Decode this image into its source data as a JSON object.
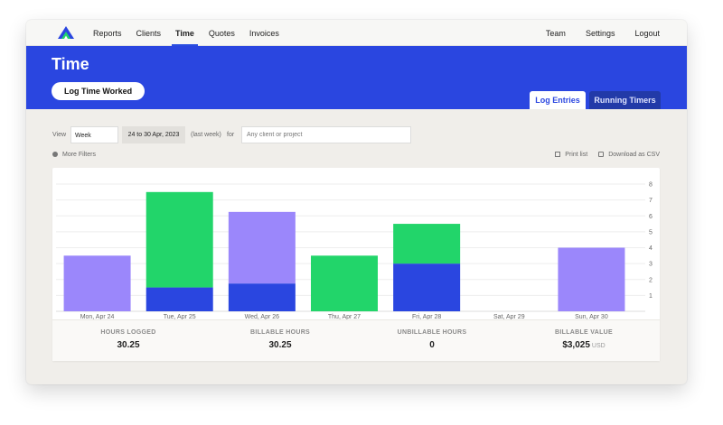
{
  "nav": {
    "logo": "logo-icon",
    "left": [
      "Reports",
      "Clients",
      "Time",
      "Quotes",
      "Invoices"
    ],
    "active": "Time",
    "right": [
      "Team",
      "Settings",
      "Logout"
    ]
  },
  "header": {
    "title": "Time",
    "log_button": "Log Time Worked",
    "tabs": [
      "Log Entries",
      "Running Timers"
    ],
    "active_tab": "Log Entries"
  },
  "filters": {
    "view_label": "View",
    "view_value": "Week",
    "date_range": "24 to 30 Apr, 2023",
    "period_note": "(last week)",
    "for_label": "for",
    "client_placeholder": "Any client or project",
    "more_filters": "More Filters",
    "print_list": "Print list",
    "download_csv": "Download as CSV"
  },
  "chart_data": {
    "type": "bar",
    "stacked": true,
    "categories": [
      "Mon, Apr 24",
      "Tue, Apr 25",
      "Wed, Apr 26",
      "Thu, Apr 27",
      "Fri, Apr 28",
      "Sat, Apr 29",
      "Sun, Apr 30"
    ],
    "ylim": [
      0,
      8
    ],
    "yticks": [
      1,
      2,
      3,
      4,
      5,
      6,
      7,
      8
    ],
    "y_axis_side": "right",
    "grid": true,
    "segments": [
      [
        {
          "value": 3.5,
          "color": "#9b87fb"
        }
      ],
      [
        {
          "value": 1.5,
          "color": "#2a46e0"
        },
        {
          "value": 6.0,
          "color": "#22d56a"
        }
      ],
      [
        {
          "value": 1.75,
          "color": "#2a46e0"
        },
        {
          "value": 4.5,
          "color": "#9b87fb"
        }
      ],
      [
        {
          "value": 3.5,
          "color": "#22d56a"
        }
      ],
      [
        {
          "value": 3.0,
          "color": "#2a46e0"
        },
        {
          "value": 2.5,
          "color": "#22d56a"
        }
      ],
      [],
      [
        {
          "value": 4.0,
          "color": "#9b87fb"
        }
      ]
    ]
  },
  "stats": [
    {
      "label": "HOURS LOGGED",
      "value": "30.25",
      "unit": ""
    },
    {
      "label": "BILLABLE HOURS",
      "value": "30.25",
      "unit": ""
    },
    {
      "label": "UNBILLABLE HOURS",
      "value": "0",
      "unit": ""
    },
    {
      "label": "BILLABLE VALUE",
      "value": "$3,025",
      "unit": "USD"
    }
  ],
  "colors": {
    "brand_blue": "#2a46e0",
    "green": "#22d56a",
    "purple": "#9b87fb",
    "tab_dark": "#223aa8"
  }
}
